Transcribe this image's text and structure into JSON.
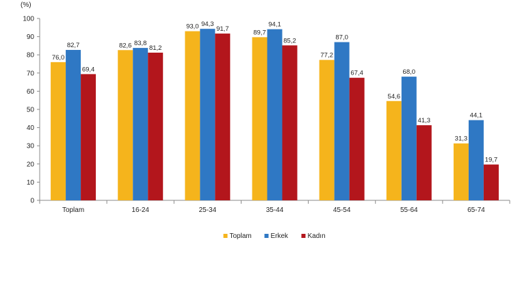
{
  "chart_data": {
    "type": "bar",
    "unit_label": "(%)",
    "categories": [
      "Toplam",
      "16-24",
      "25-34",
      "35-44",
      "45-54",
      "55-64",
      "65-74"
    ],
    "series": [
      {
        "name": "Toplam",
        "color": "#f5b41c",
        "values": [
          76.0,
          82.6,
          93.0,
          89.7,
          77.2,
          54.6,
          31.3
        ],
        "labels": [
          "76,0",
          "82,6",
          "93,0",
          "89,7",
          "77,2",
          "54,6",
          "31,3"
        ]
      },
      {
        "name": "Erkek",
        "color": "#2f78c4",
        "values": [
          82.7,
          83.8,
          94.3,
          94.1,
          87.0,
          68.0,
          44.1
        ],
        "labels": [
          "82,7",
          "83,8",
          "94,3",
          "94,1",
          "87,0",
          "68,0",
          "44,1"
        ]
      },
      {
        "name": "Kadın",
        "color": "#b3161c",
        "values": [
          69.4,
          81.2,
          91.7,
          85.2,
          67.4,
          41.3,
          19.7
        ],
        "labels": [
          "69,4",
          "81,2",
          "91,7",
          "85,2",
          "67,4",
          "41,3",
          "19,7"
        ]
      }
    ],
    "yticks": [
      "0",
      "10",
      "20",
      "30",
      "40",
      "50",
      "60",
      "70",
      "80",
      "90",
      "100"
    ],
    "ylim": [
      0,
      100
    ],
    "grid": false,
    "legend_position": "bottom-center"
  }
}
